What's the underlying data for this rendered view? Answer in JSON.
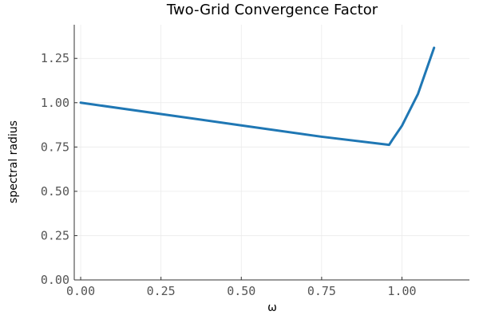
{
  "chart_data": {
    "type": "line",
    "title": "Two-Grid Convergence Factor",
    "xlabel": "ω",
    "ylabel": "spectral radius",
    "xlim": [
      -0.02,
      1.21
    ],
    "ylim": [
      0.0,
      1.44
    ],
    "x_ticks": [
      0.0,
      0.25,
      0.5,
      0.75,
      1.0
    ],
    "x_tick_labels": [
      "0.00",
      "0.25",
      "0.50",
      "0.75",
      "1.00"
    ],
    "y_ticks": [
      0.0,
      0.25,
      0.5,
      0.75,
      1.0,
      1.25
    ],
    "y_tick_labels": [
      "0.00",
      "0.25",
      "0.50",
      "0.75",
      "1.00",
      "1.25"
    ],
    "grid": true,
    "legend": false,
    "series": [
      {
        "color": "#1f77b4",
        "x": [
          0.0,
          0.25,
          0.5,
          0.75,
          0.96,
          0.97,
          1.0,
          1.05,
          1.1
        ],
        "y": [
          1.0,
          0.936,
          0.872,
          0.808,
          0.762,
          0.79,
          0.87,
          1.05,
          1.31
        ]
      }
    ]
  }
}
